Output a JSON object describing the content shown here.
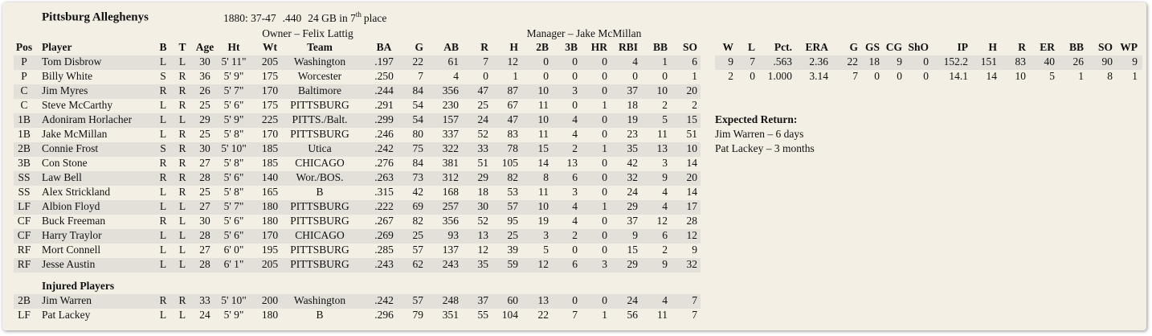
{
  "header": {
    "title": "Pittsburg Alleghenys",
    "record": "1880: 37-47",
    "pct": ".440",
    "standing": "24 GB in 7",
    "standing_sup": "th",
    "standing_tail": "place",
    "owner": "Owner – Felix Lattig",
    "manager": "Manager – Jake McMillan"
  },
  "batting": {
    "columns": [
      "Pos",
      "Player",
      "B",
      "T",
      "Age",
      "Ht",
      "Wt",
      "Team",
      "BA",
      "G",
      "AB",
      "R",
      "H",
      "2B",
      "3B",
      "HR",
      "RBI",
      "BB",
      "SO"
    ],
    "rows": [
      [
        "P",
        "Tom Disbrow",
        "L",
        "L",
        "30",
        "5' 11\"",
        "205",
        "Washington",
        ".197",
        "22",
        "61",
        "7",
        "12",
        "0",
        "0",
        "0",
        "4",
        "1",
        "6"
      ],
      [
        "P",
        "Billy White",
        "S",
        "R",
        "36",
        "5' 9\"",
        "175",
        "Worcester",
        ".250",
        "7",
        "4",
        "0",
        "1",
        "0",
        "0",
        "0",
        "0",
        "0",
        "1"
      ],
      [
        "C",
        "Jim Myres",
        "R",
        "R",
        "26",
        "5' 7\"",
        "170",
        "Baltimore",
        ".244",
        "84",
        "356",
        "47",
        "87",
        "10",
        "3",
        "0",
        "37",
        "10",
        "20"
      ],
      [
        "C",
        "Steve McCarthy",
        "L",
        "R",
        "25",
        "5' 6\"",
        "175",
        "PITTSBURG",
        ".291",
        "54",
        "230",
        "25",
        "67",
        "11",
        "0",
        "1",
        "18",
        "2",
        "2"
      ],
      [
        "1B",
        "Adoniram Horlacher",
        "L",
        "L",
        "29",
        "5' 9\"",
        "225",
        "PITTS./Balt.",
        ".299",
        "54",
        "157",
        "24",
        "47",
        "10",
        "4",
        "0",
        "19",
        "5",
        "15"
      ],
      [
        "1B",
        "Jake McMillan",
        "L",
        "R",
        "25",
        "5' 8\"",
        "170",
        "PITTSBURG",
        ".246",
        "80",
        "337",
        "52",
        "83",
        "11",
        "4",
        "0",
        "23",
        "11",
        "51"
      ],
      [
        "2B",
        "Connie Frost",
        "S",
        "R",
        "30",
        "5' 10\"",
        "185",
        "Utica",
        ".242",
        "75",
        "322",
        "33",
        "78",
        "15",
        "2",
        "1",
        "35",
        "13",
        "10"
      ],
      [
        "3B",
        "Con Stone",
        "R",
        "R",
        "27",
        "5' 8\"",
        "185",
        "CHICAGO",
        ".276",
        "84",
        "381",
        "51",
        "105",
        "14",
        "13",
        "0",
        "42",
        "3",
        "14"
      ],
      [
        "SS",
        "Law Bell",
        "R",
        "R",
        "28",
        "5' 6\"",
        "140",
        "Wor./BOS.",
        ".263",
        "73",
        "312",
        "29",
        "82",
        "8",
        "6",
        "0",
        "32",
        "9",
        "20"
      ],
      [
        "SS",
        "Alex Strickland",
        "L",
        "R",
        "25",
        "5' 8\"",
        "165",
        "B",
        ".315",
        "42",
        "168",
        "18",
        "53",
        "11",
        "3",
        "0",
        "24",
        "4",
        "14"
      ],
      [
        "LF",
        "Albion Floyd",
        "L",
        "L",
        "27",
        "5' 7\"",
        "180",
        "PITTSBURG",
        ".222",
        "69",
        "257",
        "30",
        "57",
        "10",
        "4",
        "1",
        "29",
        "4",
        "17"
      ],
      [
        "CF",
        "Buck Freeman",
        "R",
        "L",
        "30",
        "5' 6\"",
        "180",
        "PITTSBURG",
        ".267",
        "82",
        "356",
        "52",
        "95",
        "19",
        "4",
        "0",
        "37",
        "12",
        "28"
      ],
      [
        "CF",
        "Harry Traylor",
        "L",
        "L",
        "28",
        "5' 6\"",
        "170",
        "CHICAGO",
        ".269",
        "25",
        "93",
        "13",
        "25",
        "3",
        "2",
        "0",
        "9",
        "6",
        "12"
      ],
      [
        "RF",
        "Mort Connell",
        "L",
        "L",
        "27",
        "6' 0\"",
        "195",
        "PITTSBURG",
        ".285",
        "57",
        "137",
        "12",
        "39",
        "5",
        "0",
        "0",
        "15",
        "2",
        "9"
      ],
      [
        "RF",
        "Jesse Austin",
        "L",
        "L",
        "28",
        "6' 1\"",
        "205",
        "PITTSBURG",
        ".243",
        "62",
        "243",
        "35",
        "59",
        "12",
        "6",
        "3",
        "29",
        "9",
        "32"
      ]
    ]
  },
  "injured": {
    "title": "Injured Players",
    "rows": [
      [
        "2B",
        "Jim Warren",
        "R",
        "R",
        "33",
        "5' 10\"",
        "200",
        "Washington",
        ".242",
        "57",
        "248",
        "37",
        "60",
        "13",
        "0",
        "0",
        "24",
        "4",
        "7"
      ],
      [
        "LF",
        "Pat Lackey",
        "L",
        "L",
        "24",
        "5' 9\"",
        "180",
        "B",
        ".296",
        "79",
        "351",
        "55",
        "104",
        "22",
        "7",
        "1",
        "56",
        "11",
        "7"
      ]
    ]
  },
  "pitching": {
    "columns": [
      "W",
      "L",
      "Pct.",
      "ERA",
      "G",
      "GS",
      "CG",
      "ShO",
      "IP",
      "H",
      "R",
      "ER",
      "BB",
      "SO",
      "WP"
    ],
    "rows": [
      [
        "9",
        "7",
        ".563",
        "2.36",
        "22",
        "18",
        "9",
        "0",
        "152.2",
        "151",
        "83",
        "40",
        "26",
        "90",
        "9"
      ],
      [
        "2",
        "0",
        "1.000",
        "3.14",
        "7",
        "0",
        "0",
        "0",
        "14.1",
        "14",
        "10",
        "5",
        "1",
        "8",
        "1"
      ]
    ]
  },
  "expected": {
    "title": "Expected Return:",
    "items": [
      "Jim Warren – 6 days",
      "Pat Lackey – 3 months"
    ]
  }
}
